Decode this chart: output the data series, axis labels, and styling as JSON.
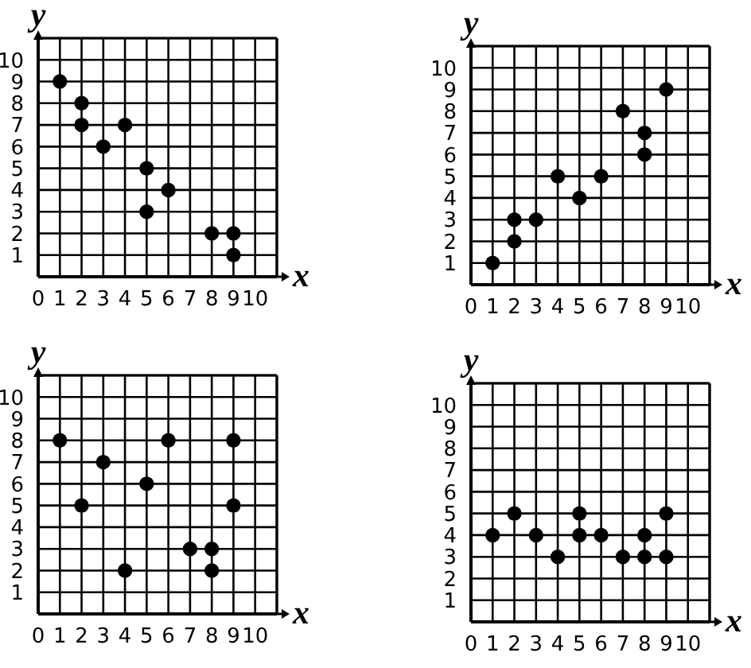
{
  "chart_data": [
    {
      "type": "scatter",
      "xlabel": "x",
      "ylabel": "y",
      "x": [
        1,
        2,
        2,
        3,
        4,
        5,
        5,
        6,
        8,
        9,
        9
      ],
      "values": [
        9,
        8,
        7,
        6,
        7,
        5,
        3,
        4,
        2,
        2,
        1
      ],
      "color": "#000000",
      "marker": "circle",
      "xlim": [
        0,
        11
      ],
      "ylim": [
        0,
        11
      ],
      "xticks": [
        0,
        1,
        2,
        3,
        4,
        5,
        6,
        7,
        8,
        9,
        10
      ],
      "yticks": [
        1,
        2,
        3,
        4,
        5,
        6,
        7,
        8,
        9,
        10
      ],
      "grid": true
    },
    {
      "type": "scatter",
      "xlabel": "x",
      "ylabel": "y",
      "x": [
        1,
        2,
        2,
        3,
        4,
        5,
        6,
        7,
        8,
        8,
        9
      ],
      "values": [
        1,
        2,
        3,
        3,
        5,
        4,
        5,
        8,
        7,
        6,
        9
      ],
      "color": "#000000",
      "marker": "circle",
      "xlim": [
        0,
        11
      ],
      "ylim": [
        0,
        11
      ],
      "xticks": [
        0,
        1,
        2,
        3,
        4,
        5,
        6,
        7,
        8,
        9,
        10
      ],
      "yticks": [
        1,
        2,
        3,
        4,
        5,
        6,
        7,
        8,
        9,
        10
      ],
      "grid": true
    },
    {
      "type": "scatter",
      "xlabel": "x",
      "ylabel": "y",
      "x": [
        1,
        2,
        3,
        4,
        5,
        6,
        7,
        8,
        8,
        9,
        9
      ],
      "values": [
        8,
        5,
        7,
        2,
        6,
        8,
        3,
        3,
        2,
        8,
        5
      ],
      "color": "#000000",
      "marker": "circle",
      "xlim": [
        0,
        11
      ],
      "ylim": [
        0,
        11
      ],
      "xticks": [
        0,
        1,
        2,
        3,
        4,
        5,
        6,
        7,
        8,
        9,
        10
      ],
      "yticks": [
        1,
        2,
        3,
        4,
        5,
        6,
        7,
        8,
        9,
        10
      ],
      "grid": true
    },
    {
      "type": "scatter",
      "xlabel": "x",
      "ylabel": "y",
      "x": [
        1,
        2,
        3,
        4,
        5,
        5,
        6,
        7,
        8,
        8,
        9,
        9
      ],
      "values": [
        4,
        5,
        4,
        3,
        5,
        4,
        4,
        3,
        4,
        3,
        5,
        3
      ],
      "color": "#000000",
      "marker": "circle",
      "xlim": [
        0,
        11
      ],
      "ylim": [
        0,
        11
      ],
      "xticks": [
        0,
        1,
        2,
        3,
        4,
        5,
        6,
        7,
        8,
        9,
        10
      ],
      "yticks": [
        1,
        2,
        3,
        4,
        5,
        6,
        7,
        8,
        9,
        10
      ],
      "grid": true
    }
  ]
}
